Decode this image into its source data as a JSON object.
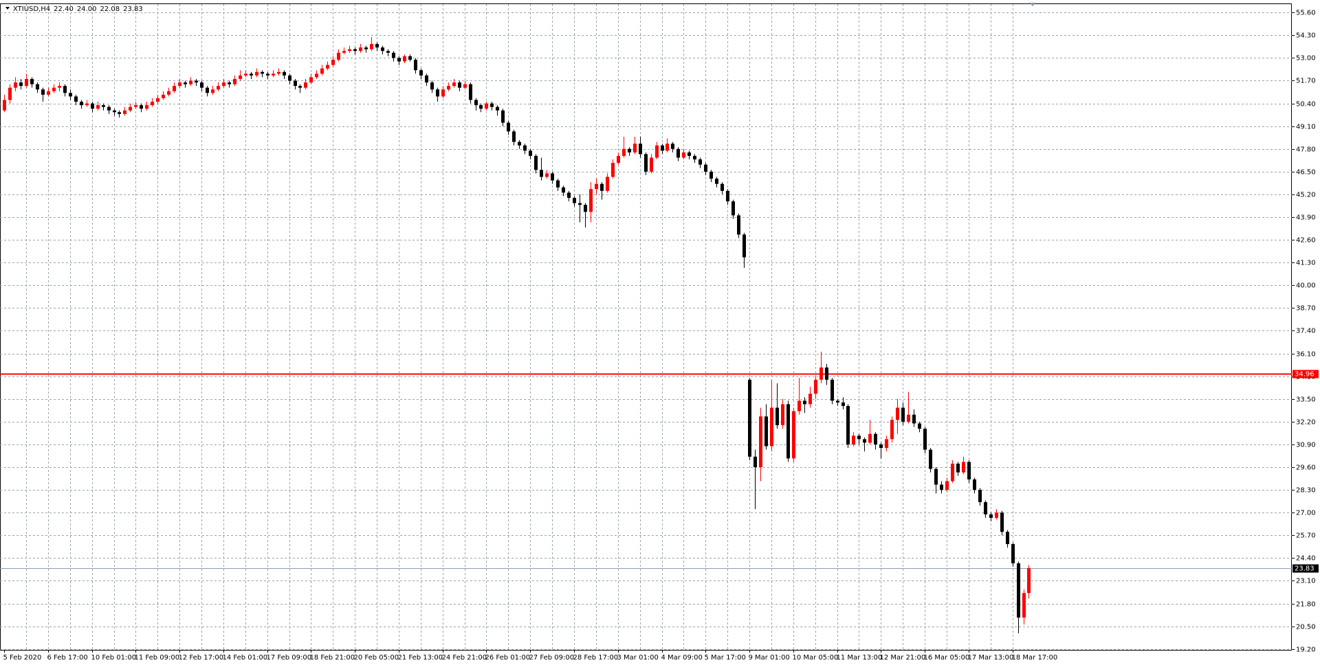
{
  "chart_data": {
    "type": "candlestick",
    "title": "XTIUSD,H4",
    "header_labels": [
      "22.40",
      "24.00",
      "22.08",
      "23.83"
    ],
    "up_color": "#ff0000",
    "down_color": "#000000",
    "grid": true,
    "ylim": [
      19.15,
      56.08
    ],
    "yticks": [
      {
        "value": 55.6,
        "label": "55.60"
      },
      {
        "value": 54.3,
        "label": "54.30"
      },
      {
        "value": 53,
        "label": "53.00"
      },
      {
        "value": 51.7,
        "label": "51.70"
      },
      {
        "value": 50.4,
        "label": "50.40"
      },
      {
        "value": 49.1,
        "label": "49.10"
      },
      {
        "value": 47.8,
        "label": "47.80"
      },
      {
        "value": 46.5,
        "label": "46.50"
      },
      {
        "value": 45.2,
        "label": "45.20"
      },
      {
        "value": 43.9,
        "label": "43.90"
      },
      {
        "value": 42.6,
        "label": "42.60"
      },
      {
        "value": 41.3,
        "label": "41.30"
      },
      {
        "value": 40,
        "label": "40.00"
      },
      {
        "value": 38.7,
        "label": "38.70"
      },
      {
        "value": 37.4,
        "label": "37.40"
      },
      {
        "value": 36.1,
        "label": "36.10"
      },
      {
        "value": 34.8,
        "label": "34.80"
      },
      {
        "value": 33.5,
        "label": "33.50"
      },
      {
        "value": 32.2,
        "label": "32.20"
      },
      {
        "value": 30.9,
        "label": "30.90"
      },
      {
        "value": 29.6,
        "label": "29.60"
      },
      {
        "value": 28.3,
        "label": "28.30"
      },
      {
        "value": 27,
        "label": "27.00"
      },
      {
        "value": 25.7,
        "label": "25.70"
      },
      {
        "value": 24.4,
        "label": "24.40"
      },
      {
        "value": 23.1,
        "label": "23.10"
      },
      {
        "value": 21.8,
        "label": "21.80"
      },
      {
        "value": 20.5,
        "label": "20.50"
      },
      {
        "value": 19.2,
        "label": "19.20"
      }
    ],
    "levels": [
      {
        "value": 34.96,
        "label": "34.96",
        "color": "#ff0000"
      }
    ],
    "bid": {
      "value": 23.83,
      "label": "23.83",
      "color": "#8a9bb0"
    },
    "categories": [
      "5 Feb 2020",
      null,
      null,
      null,
      null,
      null,
      null,
      null,
      "6 Feb 17:00",
      null,
      null,
      null,
      null,
      null,
      null,
      null,
      "10 Feb 01:00",
      null,
      null,
      null,
      null,
      null,
      null,
      null,
      "11 Feb 09:00",
      null,
      null,
      null,
      null,
      null,
      null,
      null,
      "12 Feb 17:00",
      null,
      null,
      null,
      null,
      null,
      null,
      null,
      "14 Feb 01:00",
      null,
      null,
      null,
      null,
      null,
      null,
      null,
      "17 Feb 09:00",
      null,
      null,
      null,
      null,
      null,
      null,
      null,
      "18 Feb 21:00",
      null,
      null,
      null,
      null,
      null,
      null,
      null,
      "20 Feb 05:00",
      null,
      null,
      null,
      null,
      null,
      null,
      null,
      "21 Feb 13:00",
      null,
      null,
      null,
      null,
      null,
      null,
      null,
      "24 Feb 21:00",
      null,
      null,
      null,
      null,
      null,
      null,
      null,
      "26 Feb 01:00",
      null,
      null,
      null,
      null,
      null,
      null,
      null,
      "27 Feb 09:00",
      null,
      null,
      null,
      null,
      null,
      null,
      null,
      "28 Feb 17:00",
      null,
      null,
      null,
      null,
      null,
      null,
      null,
      "3 Mar 01:00",
      null,
      null,
      null,
      null,
      null,
      null,
      null,
      "4 Mar 09:00",
      null,
      null,
      null,
      null,
      null,
      null,
      null,
      "5 Mar 17:00",
      null,
      null,
      null,
      null,
      null,
      null,
      null,
      "9 Mar 01:00",
      null,
      null,
      null,
      null,
      null,
      null,
      null,
      "10 Mar 05:00",
      null,
      null,
      null,
      null,
      null,
      null,
      null,
      "11 Mar 13:00",
      null,
      null,
      null,
      null,
      null,
      null,
      null,
      "12 Mar 21:00",
      null,
      null,
      null,
      null,
      null,
      null,
      null,
      "16 Mar 05:00",
      null,
      null,
      null,
      null,
      null,
      null,
      null,
      "17 Mar 13:00",
      null,
      null,
      null,
      null,
      null,
      null,
      null,
      "18 Mar 17:00",
      null,
      null,
      null
    ],
    "candles": [
      [
        50.0,
        50.9,
        49.9,
        50.6
      ],
      [
        50.6,
        51.5,
        50.4,
        51.3
      ],
      [
        51.3,
        51.9,
        51.1,
        51.6
      ],
      [
        51.6,
        51.8,
        51.2,
        51.4
      ],
      [
        51.4,
        52.1,
        51.3,
        51.8
      ],
      [
        51.8,
        51.9,
        51.3,
        51.5
      ],
      [
        51.5,
        51.6,
        51.0,
        51.2
      ],
      [
        51.2,
        51.3,
        50.5,
        50.9
      ],
      [
        50.9,
        51.3,
        50.8,
        51.1
      ],
      [
        51.1,
        51.5,
        51.0,
        51.3
      ],
      [
        51.3,
        51.6,
        51.1,
        51.4
      ],
      [
        51.4,
        51.5,
        50.8,
        51.0
      ],
      [
        51.0,
        51.2,
        50.6,
        50.8
      ],
      [
        50.8,
        50.9,
        50.3,
        50.5
      ],
      [
        50.5,
        50.6,
        50.1,
        50.3
      ],
      [
        50.3,
        50.6,
        50.2,
        50.4
      ],
      [
        50.4,
        50.5,
        49.9,
        50.1
      ],
      [
        50.1,
        50.5,
        50.0,
        50.3
      ],
      [
        50.3,
        50.4,
        50.0,
        50.2
      ],
      [
        50.2,
        50.3,
        49.8,
        50.0
      ],
      [
        50.0,
        50.1,
        49.7,
        49.9
      ],
      [
        49.9,
        50.0,
        49.6,
        49.8
      ],
      [
        49.8,
        50.2,
        49.7,
        50.0
      ],
      [
        50.0,
        50.4,
        49.9,
        50.2
      ],
      [
        50.2,
        50.5,
        50.1,
        50.3
      ],
      [
        50.3,
        50.4,
        49.9,
        50.1
      ],
      [
        50.1,
        50.5,
        50.0,
        50.3
      ],
      [
        50.3,
        50.7,
        50.2,
        50.5
      ],
      [
        50.5,
        50.9,
        50.4,
        50.7
      ],
      [
        50.7,
        51.1,
        50.6,
        50.9
      ],
      [
        50.9,
        51.3,
        50.8,
        51.1
      ],
      [
        51.1,
        51.6,
        51.0,
        51.4
      ],
      [
        51.4,
        51.8,
        51.3,
        51.6
      ],
      [
        51.6,
        51.7,
        51.3,
        51.5
      ],
      [
        51.5,
        51.9,
        51.4,
        51.7
      ],
      [
        51.7,
        51.8,
        51.4,
        51.6
      ],
      [
        51.6,
        51.7,
        51.1,
        51.3
      ],
      [
        51.3,
        51.4,
        50.8,
        51.0
      ],
      [
        51.0,
        51.4,
        50.9,
        51.2
      ],
      [
        51.2,
        51.6,
        51.1,
        51.4
      ],
      [
        51.4,
        51.8,
        51.3,
        51.6
      ],
      [
        51.6,
        51.7,
        51.3,
        51.5
      ],
      [
        51.5,
        52.0,
        51.4,
        51.8
      ],
      [
        51.8,
        52.3,
        51.7,
        52.0
      ],
      [
        52.0,
        52.3,
        51.9,
        52.1
      ],
      [
        52.1,
        52.2,
        51.8,
        52.0
      ],
      [
        52.0,
        52.4,
        51.9,
        52.2
      ],
      [
        52.2,
        52.3,
        51.9,
        52.1
      ],
      [
        52.1,
        52.2,
        51.8,
        52.0
      ],
      [
        52.0,
        52.3,
        51.9,
        52.1
      ],
      [
        52.1,
        52.4,
        52.0,
        52.2
      ],
      [
        52.2,
        52.3,
        51.8,
        52.0
      ],
      [
        52.0,
        52.1,
        51.5,
        51.7
      ],
      [
        51.7,
        51.8,
        51.2,
        51.4
      ],
      [
        51.4,
        51.5,
        51.0,
        51.3
      ],
      [
        51.3,
        51.8,
        51.2,
        51.6
      ],
      [
        51.6,
        52.1,
        51.5,
        51.9
      ],
      [
        51.9,
        52.3,
        51.8,
        52.1
      ],
      [
        52.1,
        52.6,
        52.0,
        52.4
      ],
      [
        52.4,
        52.8,
        52.3,
        52.6
      ],
      [
        52.6,
        53.1,
        52.5,
        52.9
      ],
      [
        52.9,
        53.5,
        52.8,
        53.3
      ],
      [
        53.3,
        53.6,
        53.2,
        53.4
      ],
      [
        53.4,
        53.7,
        53.3,
        53.5
      ],
      [
        53.5,
        53.6,
        53.2,
        53.4
      ],
      [
        53.4,
        53.8,
        53.3,
        53.6
      ],
      [
        53.6,
        53.7,
        53.3,
        53.5
      ],
      [
        53.5,
        54.2,
        53.4,
        53.8
      ],
      [
        53.8,
        53.9,
        53.4,
        53.6
      ],
      [
        53.6,
        53.7,
        53.2,
        53.4
      ],
      [
        53.4,
        53.5,
        53.1,
        53.3
      ],
      [
        53.3,
        53.4,
        52.8,
        53.0
      ],
      [
        53.0,
        53.1,
        52.6,
        52.8
      ],
      [
        52.8,
        53.2,
        52.7,
        53.1
      ],
      [
        53.1,
        53.2,
        52.8,
        52.9
      ],
      [
        52.9,
        53.0,
        52.1,
        52.3
      ],
      [
        52.3,
        52.4,
        51.8,
        52.0
      ],
      [
        52.0,
        52.1,
        51.4,
        51.6
      ],
      [
        51.6,
        51.7,
        51.0,
        51.2
      ],
      [
        51.2,
        51.3,
        50.5,
        50.8
      ],
      [
        50.8,
        51.4,
        50.7,
        51.2
      ],
      [
        51.2,
        51.6,
        51.1,
        51.4
      ],
      [
        51.4,
        51.8,
        51.3,
        51.6
      ],
      [
        51.6,
        51.7,
        51.1,
        51.3
      ],
      [
        51.3,
        51.7,
        51.2,
        51.5
      ],
      [
        51.5,
        51.6,
        50.4,
        50.6
      ],
      [
        50.6,
        50.7,
        50.0,
        50.3
      ],
      [
        50.3,
        50.4,
        49.9,
        50.1
      ],
      [
        50.1,
        50.5,
        50.0,
        50.4
      ],
      [
        50.4,
        50.5,
        50.0,
        50.2
      ],
      [
        50.2,
        50.3,
        49.7,
        50.0
      ],
      [
        50.0,
        50.1,
        49.1,
        49.3
      ],
      [
        49.3,
        49.4,
        48.6,
        48.8
      ],
      [
        48.8,
        48.9,
        48.0,
        48.2
      ],
      [
        48.2,
        48.3,
        47.8,
        48.0
      ],
      [
        48.0,
        48.1,
        47.5,
        47.7
      ],
      [
        47.7,
        47.8,
        47.2,
        47.4
      ],
      [
        47.4,
        47.5,
        46.4,
        46.6
      ],
      [
        46.6,
        47.3,
        46.0,
        46.2
      ],
      [
        46.2,
        46.6,
        46.1,
        46.4
      ],
      [
        46.4,
        46.5,
        45.8,
        46.0
      ],
      [
        46.0,
        46.1,
        45.4,
        45.6
      ],
      [
        45.6,
        45.7,
        45.1,
        45.3
      ],
      [
        45.3,
        45.4,
        44.8,
        45.0
      ],
      [
        45.0,
        45.1,
        44.5,
        44.7
      ],
      [
        44.7,
        45.2,
        43.6,
        44.6
      ],
      [
        44.6,
        44.7,
        43.3,
        44.2
      ],
      [
        44.2,
        45.9,
        43.6,
        45.5
      ],
      [
        45.5,
        46.1,
        45.2,
        45.8
      ],
      [
        45.8,
        45.9,
        44.9,
        45.4
      ],
      [
        45.4,
        46.4,
        45.3,
        46.2
      ],
      [
        46.2,
        47.2,
        46.1,
        47.0
      ],
      [
        47.0,
        47.6,
        46.9,
        47.4
      ],
      [
        47.4,
        48.5,
        47.3,
        47.8
      ],
      [
        47.8,
        47.9,
        47.4,
        47.6
      ],
      [
        47.6,
        48.5,
        47.5,
        48.1
      ],
      [
        48.1,
        48.5,
        47.3,
        47.5
      ],
      [
        47.5,
        47.6,
        46.3,
        46.5
      ],
      [
        46.5,
        47.5,
        46.4,
        47.3
      ],
      [
        47.3,
        48.2,
        47.2,
        48.0
      ],
      [
        48.0,
        48.1,
        47.5,
        47.7
      ],
      [
        47.7,
        48.4,
        47.6,
        48.1
      ],
      [
        48.1,
        48.2,
        47.6,
        47.8
      ],
      [
        47.8,
        47.9,
        47.1,
        47.3
      ],
      [
        47.3,
        47.8,
        47.2,
        47.6
      ],
      [
        47.6,
        47.7,
        47.2,
        47.4
      ],
      [
        47.4,
        47.5,
        47.0,
        47.2
      ],
      [
        47.2,
        47.3,
        46.7,
        46.9
      ],
      [
        46.9,
        47.0,
        46.3,
        46.5
      ],
      [
        46.5,
        46.6,
        45.9,
        46.1
      ],
      [
        46.1,
        46.2,
        45.6,
        45.8
      ],
      [
        45.8,
        45.9,
        45.2,
        45.4
      ],
      [
        45.4,
        45.5,
        44.6,
        44.8
      ],
      [
        44.8,
        44.9,
        43.8,
        44.0
      ],
      [
        44.0,
        44.1,
        42.7,
        42.9
      ],
      [
        42.9,
        43.0,
        41.0,
        41.6
      ],
      [
        34.6,
        34.7,
        30.0,
        30.2
      ],
      [
        30.2,
        30.6,
        27.2,
        29.6
      ],
      [
        29.6,
        33.0,
        28.8,
        32.5
      ],
      [
        32.5,
        33.2,
        30.6,
        30.8
      ],
      [
        30.8,
        34.6,
        30.5,
        33.0
      ],
      [
        33.0,
        34.4,
        31.8,
        32.0
      ],
      [
        32.0,
        33.5,
        31.8,
        33.2
      ],
      [
        33.2,
        33.4,
        29.9,
        30.1
      ],
      [
        30.1,
        33.0,
        29.9,
        32.8
      ],
      [
        32.8,
        34.7,
        32.6,
        33.4
      ],
      [
        33.4,
        33.6,
        32.7,
        33.2
      ],
      [
        33.2,
        34.2,
        33.0,
        33.8
      ],
      [
        33.8,
        34.8,
        33.5,
        34.6
      ],
      [
        34.6,
        36.2,
        34.4,
        35.3
      ],
      [
        35.3,
        35.5,
        34.3,
        34.6
      ],
      [
        34.6,
        34.7,
        33.2,
        33.4
      ],
      [
        33.4,
        33.5,
        33.1,
        33.3
      ],
      [
        33.3,
        33.6,
        32.9,
        33.1
      ],
      [
        33.1,
        33.2,
        30.7,
        30.9
      ],
      [
        30.9,
        31.6,
        30.8,
        31.4
      ],
      [
        31.4,
        31.5,
        30.9,
        31.2
      ],
      [
        31.2,
        31.3,
        30.5,
        31.0
      ],
      [
        31.0,
        32.3,
        30.9,
        31.5
      ],
      [
        31.5,
        31.6,
        30.6,
        30.9
      ],
      [
        30.9,
        31.0,
        30.1,
        30.7
      ],
      [
        30.7,
        31.4,
        30.5,
        31.2
      ],
      [
        31.2,
        32.5,
        31.0,
        32.3
      ],
      [
        32.3,
        33.5,
        31.5,
        33.0
      ],
      [
        33.0,
        33.3,
        32.0,
        32.2
      ],
      [
        32.2,
        33.9,
        32.1,
        32.6
      ],
      [
        32.6,
        32.9,
        31.9,
        32.1
      ],
      [
        32.1,
        32.2,
        31.6,
        31.8
      ],
      [
        31.8,
        31.9,
        30.4,
        30.6
      ],
      [
        30.6,
        30.7,
        29.3,
        29.5
      ],
      [
        29.5,
        29.6,
        28.1,
        28.6
      ],
      [
        28.6,
        28.8,
        28.1,
        28.3
      ],
      [
        28.3,
        29.0,
        28.2,
        28.8
      ],
      [
        28.8,
        30.0,
        28.7,
        29.8
      ],
      [
        29.8,
        29.9,
        29.1,
        29.3
      ],
      [
        29.3,
        30.2,
        29.2,
        29.9
      ],
      [
        29.9,
        30.0,
        28.7,
        28.9
      ],
      [
        28.9,
        29.0,
        28.1,
        28.3
      ],
      [
        28.3,
        28.4,
        27.4,
        27.6
      ],
      [
        27.6,
        27.7,
        26.7,
        26.9
      ],
      [
        26.9,
        27.0,
        26.5,
        26.7
      ],
      [
        26.7,
        27.2,
        26.6,
        27.0
      ],
      [
        27.0,
        27.1,
        25.7,
        25.9
      ],
      [
        25.9,
        26.0,
        25.0,
        25.2
      ],
      [
        25.2,
        25.3,
        23.9,
        24.1
      ],
      [
        24.1,
        24.2,
        20.1,
        21.0
      ],
      [
        21.0,
        22.6,
        20.6,
        22.4
      ],
      [
        22.4,
        24.0,
        22.08,
        23.83
      ]
    ]
  }
}
